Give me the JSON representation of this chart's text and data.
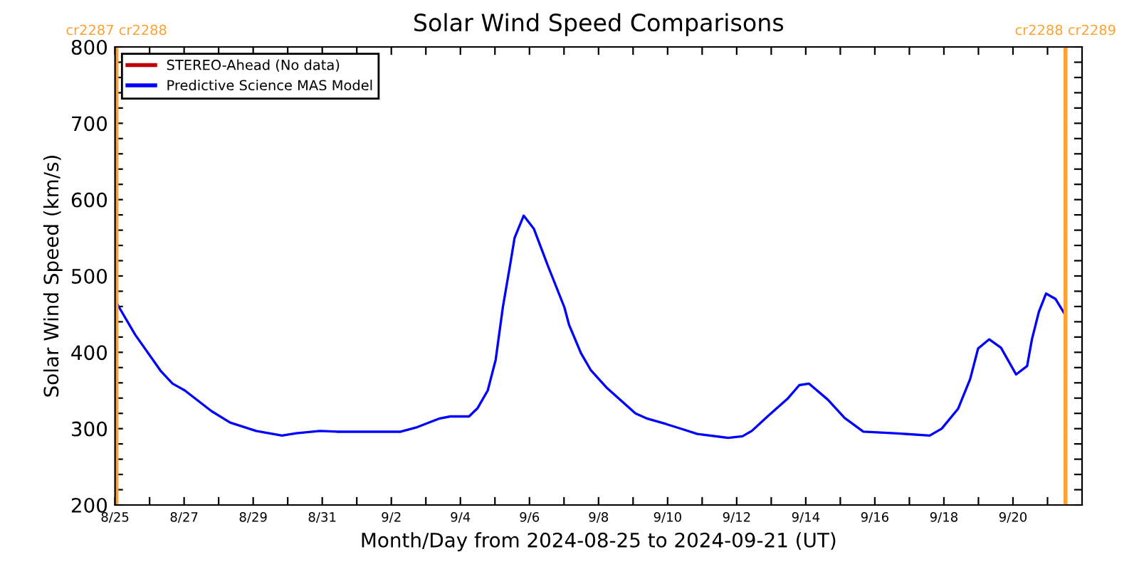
{
  "chart_data": {
    "type": "line",
    "title": "Solar Wind Speed Comparisons",
    "xlabel": "Month/Day from 2024-08-25 to 2024-09-21 (UT)",
    "ylabel": "Solar Wind Speed (km/s)",
    "xlim": [
      "2024-08-25",
      "2024-09-22"
    ],
    "xticks": [
      {
        "value": "2024-08-25",
        "label": "8/25"
      },
      {
        "value": "2024-08-26",
        "label": null
      },
      {
        "value": "2024-08-27",
        "label": "8/27"
      },
      {
        "value": "2024-08-28",
        "label": null
      },
      {
        "value": "2024-08-29",
        "label": "8/29"
      },
      {
        "value": "2024-08-30",
        "label": null
      },
      {
        "value": "2024-08-31",
        "label": "8/31"
      },
      {
        "value": "2024-09-01",
        "label": null
      },
      {
        "value": "2024-09-02",
        "label": "9/2"
      },
      {
        "value": "2024-09-03",
        "label": null
      },
      {
        "value": "2024-09-04",
        "label": "9/4"
      },
      {
        "value": "2024-09-05",
        "label": null
      },
      {
        "value": "2024-09-06",
        "label": "9/6"
      },
      {
        "value": "2024-09-07",
        "label": null
      },
      {
        "value": "2024-09-08",
        "label": "9/8"
      },
      {
        "value": "2024-09-09",
        "label": null
      },
      {
        "value": "2024-09-10",
        "label": "9/10"
      },
      {
        "value": "2024-09-11",
        "label": null
      },
      {
        "value": "2024-09-12",
        "label": "9/12"
      },
      {
        "value": "2024-09-13",
        "label": null
      },
      {
        "value": "2024-09-14",
        "label": "9/14"
      },
      {
        "value": "2024-09-15",
        "label": null
      },
      {
        "value": "2024-09-16",
        "label": "9/16"
      },
      {
        "value": "2024-09-17",
        "label": null
      },
      {
        "value": "2024-09-18",
        "label": "9/18"
      },
      {
        "value": "2024-09-19",
        "label": null
      },
      {
        "value": "2024-09-20",
        "label": "9/20"
      },
      {
        "value": "2024-09-21",
        "label": null
      }
    ],
    "ylim": [
      200,
      800
    ],
    "yticks": [
      200,
      {
        "value": 220,
        "label": null
      },
      {
        "value": 240,
        "label": null
      },
      {
        "value": 260,
        "label": null
      },
      {
        "value": 280,
        "label": null
      },
      300,
      {
        "value": 320,
        "label": null
      },
      {
        "value": 340,
        "label": null
      },
      {
        "value": 360,
        "label": null
      },
      {
        "value": 380,
        "label": null
      },
      400,
      {
        "value": 420,
        "label": null
      },
      {
        "value": 440,
        "label": null
      },
      {
        "value": 460,
        "label": null
      },
      {
        "value": 480,
        "label": null
      },
      500,
      {
        "value": 520,
        "label": null
      },
      {
        "value": 540,
        "label": null
      },
      {
        "value": 560,
        "label": null
      },
      {
        "value": 580,
        "label": null
      },
      600,
      {
        "value": 620,
        "label": null
      },
      {
        "value": 640,
        "label": null
      },
      {
        "value": 660,
        "label": null
      },
      {
        "value": 680,
        "label": null
      },
      700,
      {
        "value": 720,
        "label": null
      },
      {
        "value": 740,
        "label": null
      },
      {
        "value": 760,
        "label": null
      },
      {
        "value": 780,
        "label": null
      },
      800
    ],
    "grid": false,
    "legend": "top left",
    "marker": "none",
    "line_style": "solid",
    "ref_lines": [
      {
        "axis": "x",
        "value": "2024-08-25T01:00",
        "label": "cr2287 cr2288",
        "color": "#ffa030"
      },
      {
        "axis": "x",
        "value": "2024-09-21T12:30",
        "label": "cr2288 cr2289",
        "color": "#ffa030"
      }
    ],
    "series": [
      {
        "name": "STEREO-Ahead (No data)",
        "color": "#c00000"
      },
      {
        "name": "Predictive Science MAS Model",
        "color": "#0000ff",
        "x": [
          "2024-08-25T00:00",
          "2024-08-25T14:00",
          "2024-08-26T08:00",
          "2024-08-26T16:00",
          "2024-08-27T00:30",
          "2024-08-27T19:00",
          "2024-08-28T08:00",
          "2024-08-29T02:00",
          "2024-08-29T20:00",
          "2024-08-30T06:00",
          "2024-08-30T22:30",
          "2024-08-31T10:00",
          "2024-09-02T06:30",
          "2024-09-02T18:00",
          "2024-09-03T09:00",
          "2024-09-03T17:00",
          "2024-09-04T06:00",
          "2024-09-04T12:00",
          "2024-09-04T19:00",
          "2024-09-05T00:30",
          "2024-09-05T05:30",
          "2024-09-05T10:30",
          "2024-09-05T13:40",
          "2024-09-05T20:00",
          "2024-09-06T03:00",
          "2024-09-06T12:40",
          "2024-09-07T00:15",
          "2024-09-07T03:30",
          "2024-09-07T11:45",
          "2024-09-07T18:30",
          "2024-09-08T06:00",
          "2024-09-09T01:40",
          "2024-09-09T10:00",
          "2024-09-09T23:00",
          "2024-09-10T10:50",
          "2024-09-10T20:40",
          "2024-09-11T18:00",
          "2024-09-12T04:00",
          "2024-09-12T10:30",
          "2024-09-12T22:00",
          "2024-09-13T11:15",
          "2024-09-13T19:30",
          "2024-09-14T02:10",
          "2024-09-14T15:20",
          "2024-09-15T03:00",
          "2024-09-15T16:00",
          "2024-09-16T13:30",
          "2024-09-17T14:10",
          "2024-09-17T22:30",
          "2024-09-18T09:50",
          "2024-09-18T18:15",
          "2024-09-18T23:45",
          "2024-09-19T07:30",
          "2024-09-19T15:40",
          "2024-09-20T02:10",
          "2024-09-20T09:50",
          "2024-09-20T13:10",
          "2024-09-20T18:00",
          "2024-09-20T23:00",
          "2024-09-21T05:30",
          "2024-09-21T12:00"
        ],
        "values": [
          468,
          423,
          375,
          359,
          350,
          323,
          308,
          297,
          291,
          294,
          297,
          296,
          296,
          302,
          313,
          316,
          316,
          327,
          350,
          390,
          459,
          514,
          550,
          579,
          562,
          514,
          459,
          436,
          399,
          377,
          353,
          320,
          313,
          306,
          299,
          293,
          288,
          290,
          297,
          317,
          339,
          357,
          359,
          338,
          314,
          296,
          294,
          291,
          300,
          326,
          365,
          405,
          417,
          406,
          371,
          382,
          417,
          453,
          477,
          470,
          450
        ]
      }
    ]
  }
}
